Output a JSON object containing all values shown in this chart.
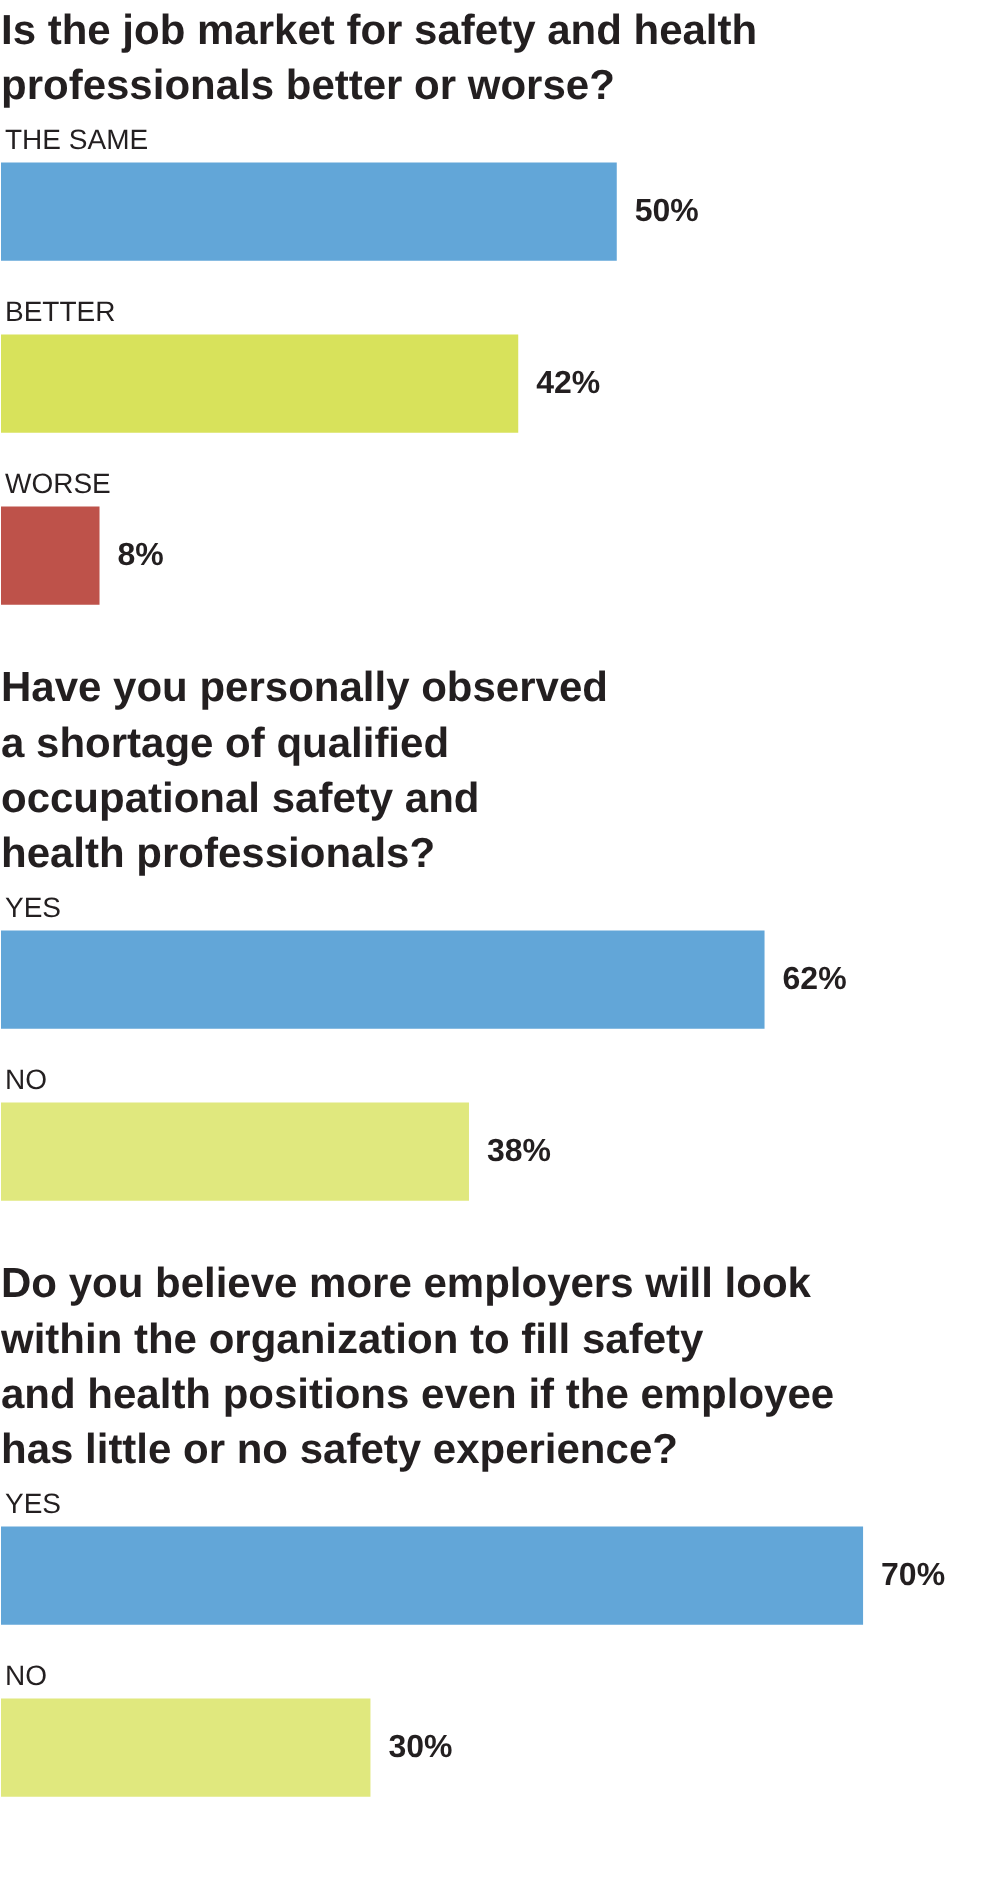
{
  "chart_data": [
    {
      "type": "bar",
      "orientation": "horizontal",
      "title": "Is the job market for safety and health professionals better or worse?",
      "categories": [
        "THE SAME",
        "BETTER",
        "WORSE"
      ],
      "values": [
        50,
        42,
        8
      ],
      "colors": [
        "#62a6d8",
        "#d8e25b",
        "#be524a"
      ],
      "value_labels": [
        "50%",
        "42%",
        "8%"
      ]
    },
    {
      "type": "bar",
      "orientation": "horizontal",
      "title": "Have you personally observed a shortage of qualified occupational safety and health professionals?",
      "categories": [
        "YES",
        "NO"
      ],
      "values": [
        62,
        38
      ],
      "colors": [
        "#62a6d8",
        "#e0e87e"
      ],
      "value_labels": [
        "62%",
        "38%"
      ]
    },
    {
      "type": "bar",
      "orientation": "horizontal",
      "title": "Do you believe more employers will look within the organization to fill safety and health positions even if the employee has little or no safety experience?",
      "categories": [
        "YES",
        "NO"
      ],
      "values": [
        70,
        30
      ],
      "colors": [
        "#62a6d8",
        "#e0e87e"
      ],
      "value_labels": [
        "70%",
        "30%"
      ]
    }
  ]
}
